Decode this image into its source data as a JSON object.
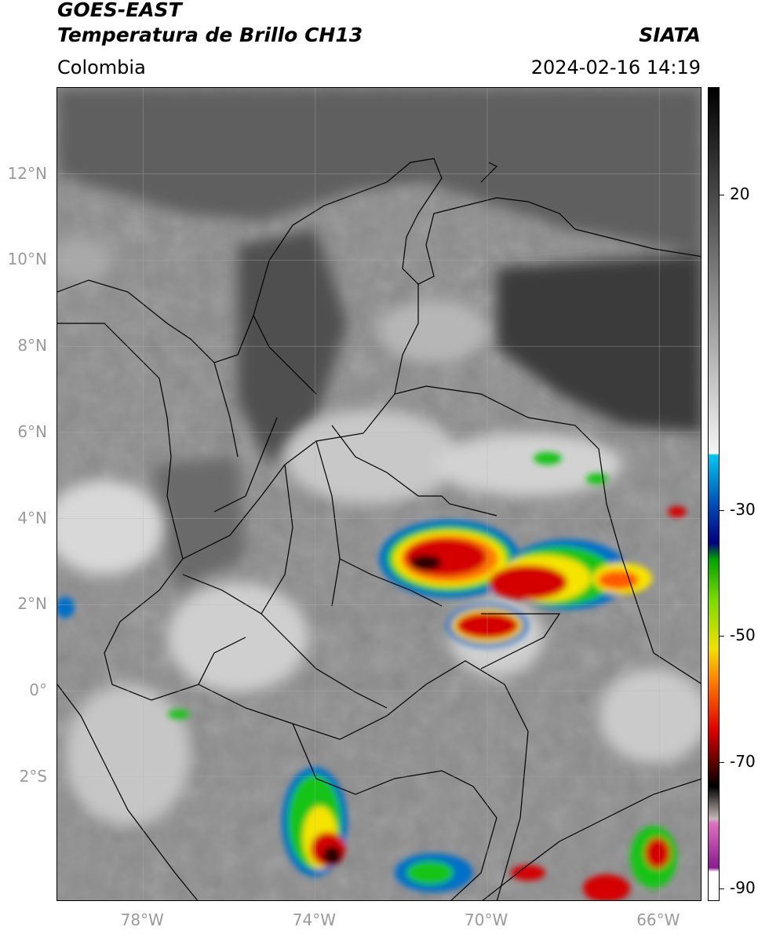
{
  "header": {
    "satellite": "GOES-EAST",
    "product": "Temperatura de Brillo CH13",
    "region": "Colombia",
    "agency": "SIATA",
    "datetime": "2024-02-16 14:19"
  },
  "map": {
    "lat_ticks": [
      "12°N",
      "10°N",
      "8°N",
      "6°N",
      "4°N",
      "2°N",
      "0°",
      "2°S"
    ],
    "lon_ticks": [
      "78°W",
      "74°W",
      "70°W",
      "66°W"
    ],
    "lat_values": [
      12,
      10,
      8,
      6,
      4,
      2,
      0,
      -2
    ],
    "lon_values": [
      -78,
      -74,
      -70,
      -66
    ],
    "extent": {
      "lon_min": -80.0,
      "lon_max": -65.0,
      "lat_min": -4.9,
      "lat_max": 14.0
    },
    "gridlines": true,
    "colors": {
      "background_gray": "#8a8a8a",
      "warm_dark": "#3c3c3c",
      "cold_red": "#d40000",
      "cold_yellow": "#f5e400",
      "cold_green": "#19c419",
      "cold_blue": "#0060c0"
    }
  },
  "colorbar": {
    "ticks": [
      "20",
      "-30",
      "-50",
      "-70",
      "-90"
    ],
    "tick_values": [
      20,
      -30,
      -50,
      -70,
      -90
    ],
    "range": [
      -92,
      37
    ]
  }
}
